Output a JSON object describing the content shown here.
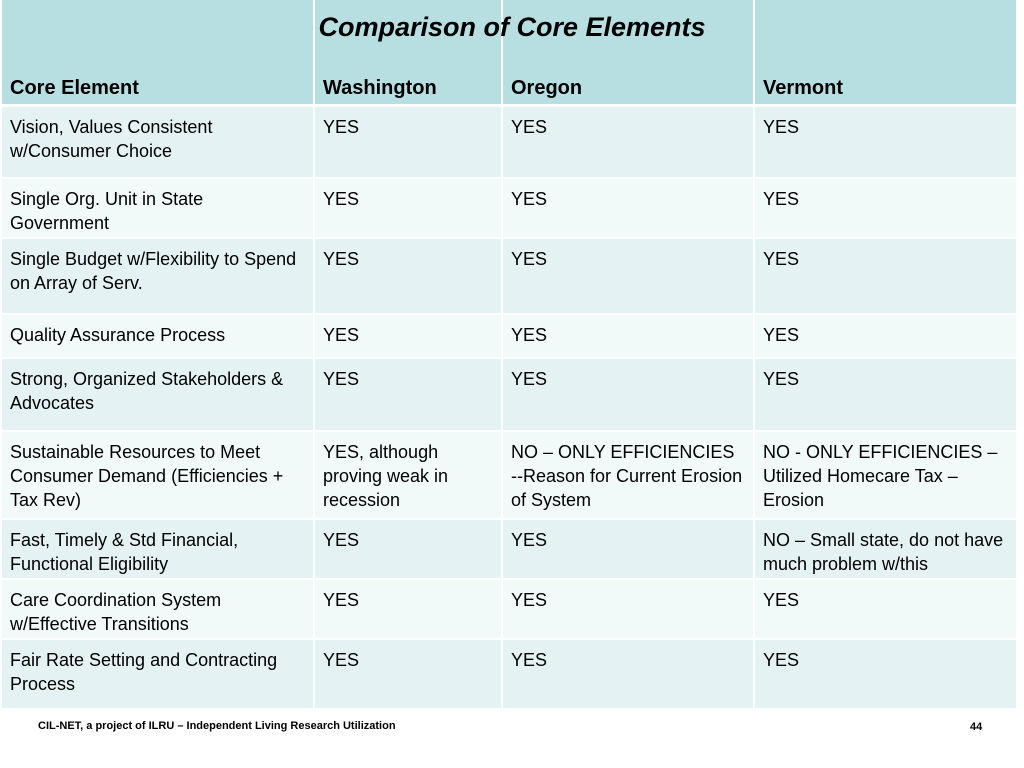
{
  "title": "Comparison of Core Elements",
  "headers": [
    "Core Element",
    "Washington",
    "Oregon",
    "Vermont"
  ],
  "rows": [
    [
      "Vision, Values Consistent w/Consumer Choice",
      "YES",
      "YES",
      "YES"
    ],
    [
      "Single Org. Unit in State Government",
      "YES",
      "YES",
      "YES"
    ],
    [
      "Single Budget w/Flexibility to Spend on Array of Serv.",
      "YES",
      "YES",
      "YES"
    ],
    [
      "Quality Assurance Process",
      "YES",
      "YES",
      "YES"
    ],
    [
      "Strong, Organized Stakeholders & Advocates",
      "YES",
      "YES",
      "YES"
    ],
    [
      "Sustainable Resources to Meet Consumer Demand (Efficiencies + Tax Rev)",
      "YES, although proving weak in recession",
      "NO – ONLY EFFICIENCIES --Reason for Current Erosion of System",
      "NO - ONLY EFFICIENCIES – Utilized Homecare Tax – Erosion"
    ],
    [
      "Fast, Timely & Std Financial, Functional Eligibility",
      "YES",
      "YES",
      "NO – Small state, do not have much problem w/this"
    ],
    [
      "Care Coordination System w/Effective Transitions",
      "YES",
      "YES",
      "YES"
    ],
    [
      "Fair Rate Setting and Contracting Process",
      "YES",
      "YES",
      "YES"
    ]
  ],
  "footer": {
    "credit": "CIL-NET, a project of ILRU – Independent Living Research Utilization",
    "page_number": "44"
  },
  "colors": {
    "header_bg": "#b7dfe2",
    "row_odd_bg": "#e5f2f3",
    "row_even_bg": "#f2f9f9"
  }
}
